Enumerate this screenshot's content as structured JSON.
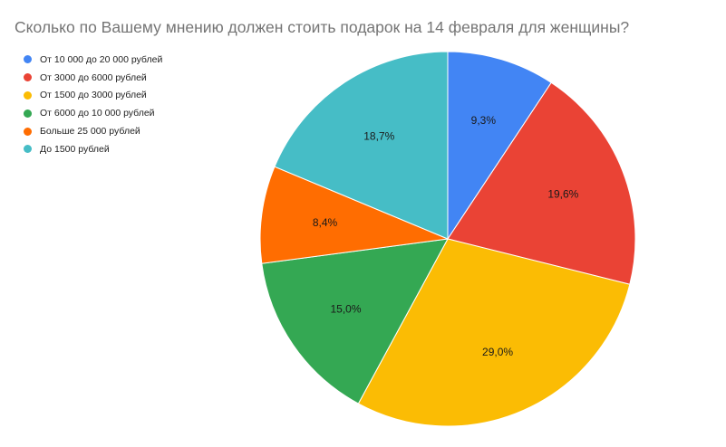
{
  "title": "Сколько по Вашему мнению должен стоить подарок на 14 февраля для женщины?",
  "legend": [
    {
      "label": "От 10 000 до 20 000 рублей",
      "color": "#4285F4"
    },
    {
      "label": "От 3000 до 6000 рублей",
      "color": "#EA4335"
    },
    {
      "label": "От 1500 до 3000 рублей",
      "color": "#FBBC04"
    },
    {
      "label": "От 6000 до 10 000 рублей",
      "color": "#34A853"
    },
    {
      "label": "Больше 25 000 рублей",
      "color": "#FF6D01"
    },
    {
      "label": "До 1500 рублей",
      "color": "#46BDC6"
    }
  ],
  "chart_data": {
    "type": "pie",
    "title": "Сколько по Вашему мнению должен стоить подарок на 14 февраля для женщины?",
    "categories": [
      "От 10 000 до 20 000 рублей",
      "От 3000 до 6000 рублей",
      "От 1500 до 3000 рублей",
      "От 6000 до 10 000 рублей",
      "Больше 25 000 рублей",
      "До 1500 рублей"
    ],
    "values": [
      9.3,
      19.6,
      29.0,
      15.0,
      8.4,
      18.7
    ],
    "labels": [
      "9,3%",
      "19,6%",
      "29,0%",
      "15,0%",
      "8,4%",
      "18,7%"
    ],
    "colors": [
      "#4285F4",
      "#EA4335",
      "#FBBC04",
      "#34A853",
      "#FF6D01",
      "#46BDC6"
    ],
    "unit": "%",
    "start_angle": "12 o'clock, clockwise",
    "legend_position": "left"
  }
}
